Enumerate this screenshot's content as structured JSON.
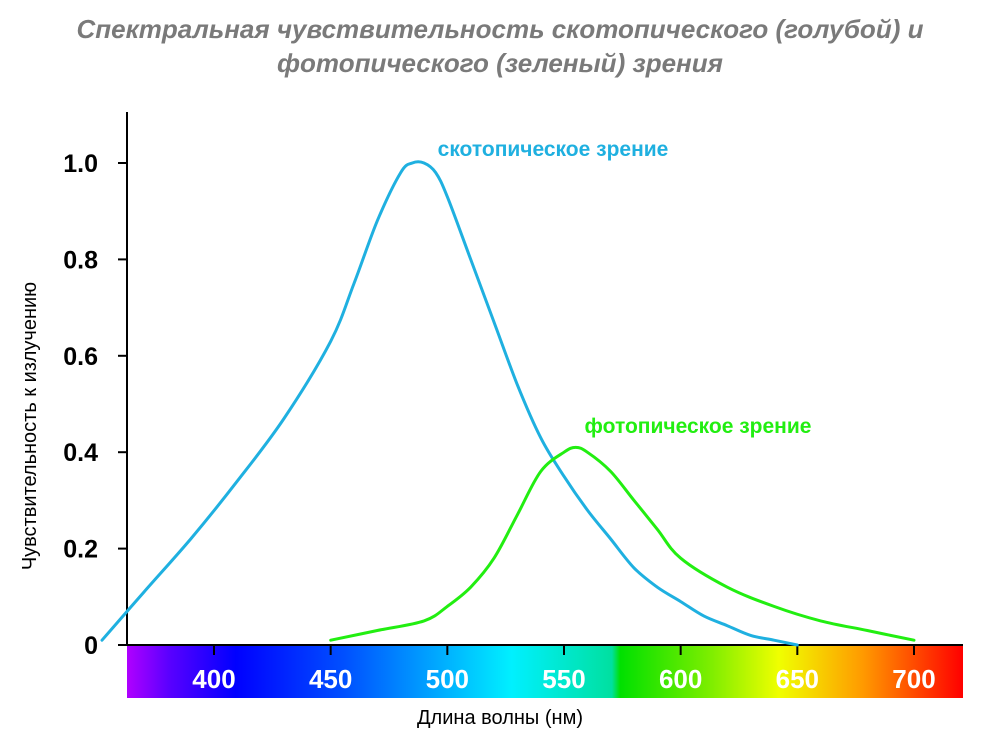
{
  "chart_data": {
    "type": "line",
    "title_line1": "Спектральная чувствительность скотопического (голубой) и",
    "title_line2": "фотопического (зеленый) зрения",
    "xlabel": "Длина волны (нм)",
    "ylabel": "Чувствительность к излучению",
    "xlim": [
      350,
      707
    ],
    "ylim": [
      0,
      1.1
    ],
    "y_ticks": [
      "0",
      "0.2",
      "0.4",
      "0.6",
      "0.8",
      "1.0"
    ],
    "y_tick_values": [
      0,
      0.2,
      0.4,
      0.6,
      0.8,
      1.0
    ],
    "x_ticks": [
      "400",
      "450",
      "500",
      "550",
      "600",
      "650",
      "700"
    ],
    "x_tick_values": [
      400,
      450,
      500,
      550,
      600,
      650,
      700
    ],
    "spectrum_bar": true,
    "grid": false,
    "series": [
      {
        "name": "скотопическое зрение",
        "color": "#1fb0e0",
        "x": [
          352,
          370,
          390,
          410,
          430,
          450,
          460,
          470,
          480,
          485,
          490,
          495,
          500,
          510,
          520,
          530,
          540,
          550,
          560,
          570,
          580,
          590,
          600,
          610,
          620,
          630,
          640,
          650
        ],
        "y": [
          0.01,
          0.11,
          0.22,
          0.34,
          0.47,
          0.63,
          0.75,
          0.88,
          0.98,
          1.0,
          1.0,
          0.98,
          0.93,
          0.8,
          0.67,
          0.54,
          0.43,
          0.35,
          0.28,
          0.22,
          0.16,
          0.12,
          0.09,
          0.06,
          0.04,
          0.02,
          0.01,
          0.0
        ]
      },
      {
        "name": "фотопическое зрение",
        "color": "#22ee11",
        "x": [
          450,
          470,
          490,
          500,
          510,
          520,
          530,
          540,
          550,
          555,
          560,
          570,
          580,
          590,
          600,
          620,
          640,
          660,
          680,
          700
        ],
        "y": [
          0.01,
          0.03,
          0.05,
          0.08,
          0.12,
          0.18,
          0.27,
          0.36,
          0.4,
          0.41,
          0.4,
          0.36,
          0.3,
          0.24,
          0.18,
          0.12,
          0.08,
          0.05,
          0.03,
          0.01
        ]
      }
    ]
  }
}
